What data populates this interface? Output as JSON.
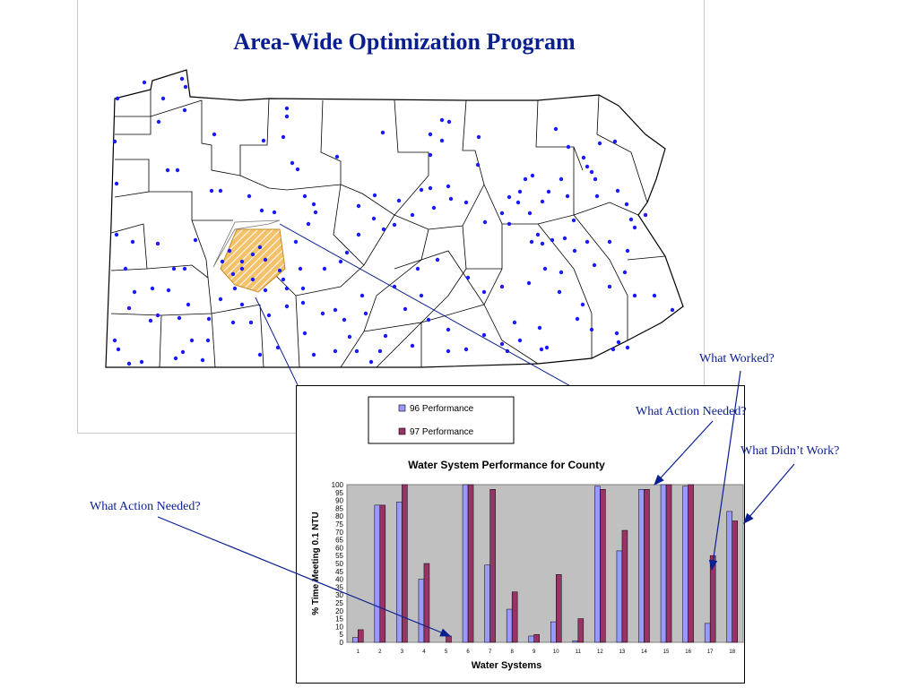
{
  "slide": {
    "title": "Area-Wide Optimization Program"
  },
  "map": {
    "region": "Pennsylvania counties",
    "dot_color": "#1a1aff",
    "highlight_color": "#f0a830"
  },
  "annotations": {
    "what_worked": "What Worked?",
    "what_action_needed_right": "What Action Needed?",
    "what_didnt_work": "What Didn’t Work?",
    "what_action_needed_left": "What Action Needed?"
  },
  "chart_data": {
    "type": "bar",
    "title": "Water System  Performance for County",
    "xlabel": "Water Systems",
    "ylabel": "% Time Meeting 0.1  NTU",
    "ylim": [
      0,
      100
    ],
    "ytick_step": 5,
    "categories": [
      "1",
      "2",
      "3",
      "4",
      "5",
      "6",
      "7",
      "8",
      "9",
      "10",
      "11",
      "12",
      "13",
      "14",
      "15",
      "16",
      "17",
      "18"
    ],
    "series": [
      {
        "name": "96 Performance",
        "color": "#9999ff",
        "values": [
          3,
          87,
          89,
          40,
          0,
          100,
          49,
          21,
          4,
          13,
          1,
          99,
          58,
          97,
          100,
          99,
          12,
          83
        ]
      },
      {
        "name": "97 Performance",
        "color": "#993366",
        "values": [
          8,
          87,
          100,
          50,
          4,
          100,
          97,
          32,
          5,
          43,
          15,
          97,
          71,
          97,
          100,
          100,
          55,
          77
        ]
      }
    ],
    "plot_background": "#c0c0c0",
    "legend_position": "top"
  }
}
